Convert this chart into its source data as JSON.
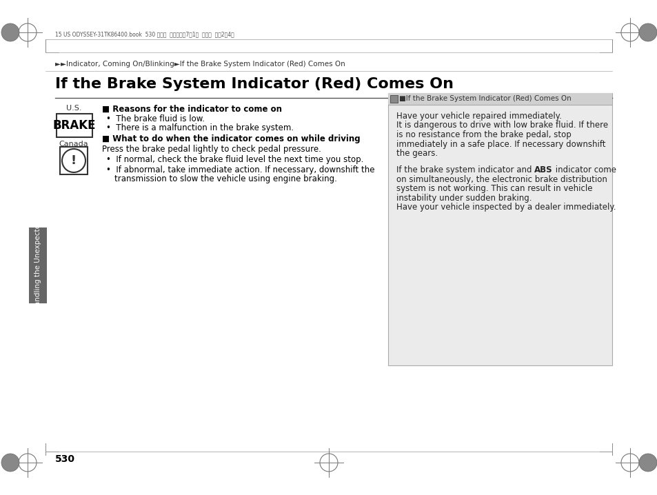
{
  "bg_color": "#ffffff",
  "header_top_text": "15 US ODYSSEY-31TK86400.book  530 ページ  ２０１４年7月1日  火曜日  午後2晎4分",
  "header_breadcrumb": "►►Indicator, Coming On/Blinking►If the Brake System Indicator (Red) Comes On",
  "title": "If the Brake System Indicator (Red) Comes On",
  "us_label": "U.S.",
  "canada_label": "Canada",
  "section1_header": "■ Reasons for the indicator to come on",
  "section1_bullet1": "The brake fluid is low.",
  "section1_bullet2": "There is a malfunction in the brake system.",
  "section2_header": "■ What to do when the indicator comes on while driving",
  "section2_intro": "Press the brake pedal lightly to check pedal pressure.",
  "section2_bullet1": "If normal, check the brake fluid level the next time you stop.",
  "section2_bullet2a": "If abnormal, take immediate action. If necessary, downshift the",
  "section2_bullet2b": "transmission to slow the vehicle using engine braking.",
  "right_box_header": "■If the Brake System Indicator (Red) Comes On",
  "right_para1_l1": "Have your vehicle repaired immediately.",
  "right_para1_l2": "It is dangerous to drive with low brake fluid. If there",
  "right_para1_l3": "is no resistance from the brake pedal, stop",
  "right_para1_l4": "immediately in a safe place. If necessary downshift",
  "right_para1_l5": "the gears.",
  "right_para2_pre": "If the brake system indicator and ",
  "right_para2_bold": "ABS",
  "right_para2_post": " indicator come",
  "right_para2_l2": "on simultaneously, the electronic brake distribution",
  "right_para2_l3": "system is not working. This can result in vehicle",
  "right_para2_l4": "instability under sudden braking.",
  "right_para2_l5": "Have your vehicle inspected by a dealer immediately.",
  "page_number": "530",
  "sidebar_label": "Handling the Unexpected",
  "sidebar_color": "#666666",
  "right_box_bg": "#ebebeb",
  "right_box_header_bg": "#d0d0d0"
}
